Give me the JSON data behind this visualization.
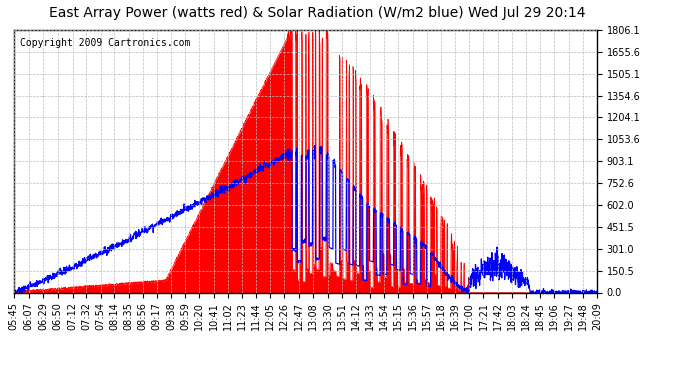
{
  "title": "East Array Power (watts red) & Solar Radiation (W/m2 blue) Wed Jul 29 20:14",
  "copyright_text": "Copyright 2009 Cartronics.com",
  "bg_color": "#ffffff",
  "plot_bg_color": "#ffffff",
  "grid_color": "#bbbbbb",
  "y_ticks": [
    0.0,
    150.5,
    301.0,
    451.5,
    602.0,
    752.6,
    903.1,
    1053.6,
    1204.1,
    1354.6,
    1505.1,
    1655.6,
    1806.1
  ],
  "y_max": 1806.1,
  "x_labels": [
    "05:45",
    "06:07",
    "06:29",
    "06:50",
    "07:12",
    "07:32",
    "07:54",
    "08:14",
    "08:35",
    "08:56",
    "09:17",
    "09:38",
    "09:59",
    "10:20",
    "10:41",
    "11:02",
    "11:23",
    "11:44",
    "12:05",
    "12:26",
    "12:47",
    "13:08",
    "13:30",
    "13:51",
    "14:12",
    "14:33",
    "14:54",
    "15:15",
    "15:36",
    "15:57",
    "16:18",
    "16:39",
    "17:00",
    "17:21",
    "17:42",
    "18:03",
    "18:24",
    "18:45",
    "19:06",
    "19:27",
    "19:48",
    "20:09"
  ],
  "red_color": "#ff0000",
  "blue_color": "#0000ff",
  "title_fontsize": 10,
  "axis_fontsize": 7,
  "copyright_fontsize": 7
}
